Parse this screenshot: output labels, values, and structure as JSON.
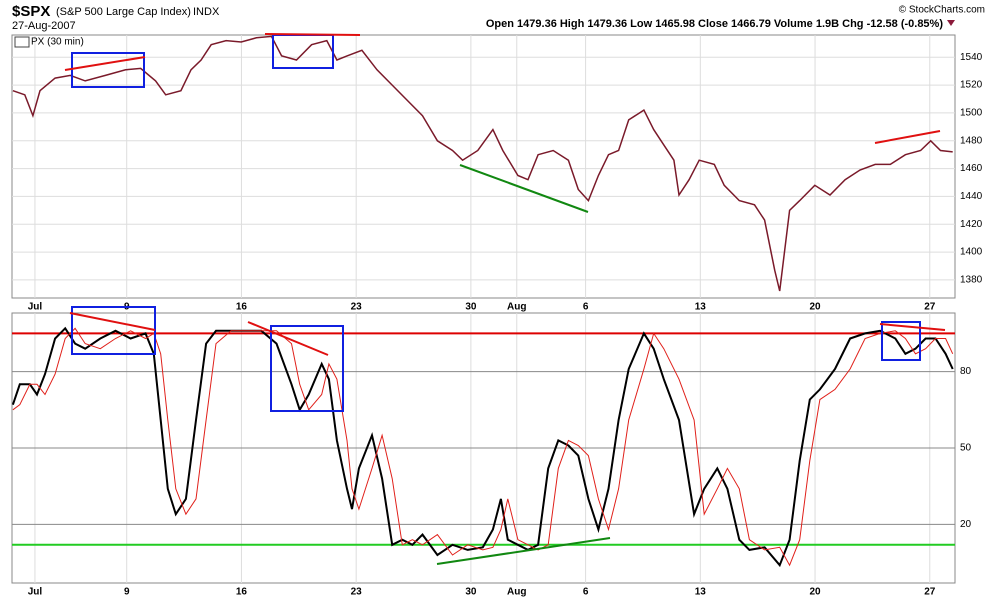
{
  "chart_data": [
    {
      "type": "line",
      "title": "$SPX",
      "subtitle": "(S&P 500 Large Cap Index)",
      "exchange": "INDX",
      "date": "27-Aug-2007",
      "quote": "Open 1479.36  High 1479.36  Low 1465.98  Close 1466.79  Volume 1.9B  Chg -12.58 (-0.85%)",
      "credit": "© StockCharts.com",
      "x": [
        -0.96,
        -0.44,
        -0.09,
        0.22,
        0.88,
        1.54,
        2.19,
        3.07,
        3.95,
        4.61,
        5.26,
        5.7,
        6.36,
        6.8,
        7.24,
        7.68,
        8.33,
        8.99,
        9.65,
        10.31,
        10.75,
        11.4,
        12.06,
        12.72,
        13.16,
        13.6,
        14.25,
        14.91,
        15.57,
        16.23,
        16.89,
        17.54,
        18.2,
        18.64,
        19.3,
        19.96,
        20.39,
        21.05,
        21.49,
        21.93,
        22.59,
        23.25,
        23.68,
        24.12,
        24.56,
        25.0,
        25.44,
        25.88,
        26.54,
        26.97,
        27.41,
        27.85,
        28.07,
        28.51,
        28.95,
        29.61,
        30.04,
        30.7,
        31.36,
        31.8,
        32.24,
        32.46,
        32.89,
        33.33,
        33.99,
        34.65,
        35.31,
        35.96,
        36.62,
        37.28,
        37.94,
        38.6,
        39.04,
        39.47,
        40.0
      ],
      "series": [
        {
          "name": "PX (30 min)",
          "color": "#7a1a2a",
          "values": [
            1516,
            1513,
            1498,
            1516,
            1525,
            1527,
            1523,
            1527,
            1531,
            1532,
            1523,
            1513,
            1516,
            1531,
            1538,
            1549,
            1552,
            1551,
            1554,
            1555,
            1541,
            1538,
            1549,
            1552,
            1538,
            1541,
            1545,
            1531,
            1520,
            1509,
            1498,
            1480,
            1473,
            1466,
            1473,
            1488,
            1473,
            1455,
            1452,
            1470,
            1473,
            1466,
            1445,
            1437,
            1455,
            1470,
            1473,
            1495,
            1502,
            1488,
            1477,
            1466,
            1441,
            1452,
            1466,
            1463,
            1448,
            1437,
            1434,
            1423,
            1387,
            1372,
            1430,
            1437,
            1448,
            1441,
            1452,
            1459,
            1463,
            1463,
            1470,
            1473,
            1480,
            1473,
            1472
          ]
        }
      ],
      "xlim": [
        -1,
        40.1
      ],
      "xticks": [
        {
          "value": 0,
          "label": "Jul"
        },
        {
          "value": 4,
          "label": "9"
        },
        {
          "value": 9,
          "label": "16"
        },
        {
          "value": 14,
          "label": "23"
        },
        {
          "value": 19,
          "label": "30"
        },
        {
          "value": 21,
          "label": "Aug"
        },
        {
          "value": 24,
          "label": "6"
        },
        {
          "value": 29,
          "label": "13"
        },
        {
          "value": 34,
          "label": "20"
        },
        {
          "value": 39,
          "label": "27"
        }
      ],
      "ylim": [
        1367,
        1556
      ],
      "yticks": [
        1380,
        1400,
        1420,
        1440,
        1460,
        1480,
        1500,
        1520,
        1540
      ],
      "grid": true
    },
    {
      "type": "line",
      "x": [
        -0.96,
        -0.66,
        -0.22,
        0.09,
        0.44,
        0.88,
        1.32,
        1.75,
        2.19,
        2.85,
        3.51,
        4.17,
        4.82,
        5.18,
        5.48,
        5.79,
        6.14,
        6.58,
        7.02,
        7.46,
        7.89,
        8.55,
        9.21,
        9.87,
        10.53,
        11.18,
        11.54,
        11.93,
        12.5,
        12.81,
        13.16,
        13.6,
        13.82,
        14.12,
        14.69,
        15.13,
        15.57,
        16.01,
        16.45,
        16.89,
        17.54,
        18.2,
        18.86,
        19.52,
        19.96,
        20.31,
        20.61,
        21.05,
        21.49,
        21.93,
        22.37,
        22.81,
        23.25,
        23.68,
        24.12,
        24.56,
        25.0,
        25.44,
        25.88,
        26.54,
        26.97,
        27.41,
        28.07,
        28.73,
        29.17,
        29.74,
        30.18,
        30.7,
        31.14,
        31.8,
        32.46,
        32.89,
        33.33,
        33.77,
        34.21,
        34.87,
        35.53,
        36.18,
        36.84,
        37.5,
        37.94,
        38.38,
        38.82,
        39.25,
        39.69,
        40.0
      ],
      "series": [
        {
          "color": "#000000",
          "values": [
            67,
            75,
            75,
            71,
            79,
            93,
            97,
            91,
            89,
            93,
            96,
            93,
            95,
            87,
            61,
            34,
            24,
            30,
            61,
            91,
            96,
            96,
            96,
            96,
            91,
            75,
            65,
            71,
            83,
            77,
            53,
            34,
            26,
            42,
            55,
            38,
            12,
            14,
            12,
            16,
            8,
            12,
            10,
            11,
            18,
            30,
            14,
            12,
            10,
            12,
            42,
            53,
            51,
            47,
            30,
            18,
            34,
            61,
            81,
            95,
            89,
            77,
            61,
            24,
            34,
            42,
            34,
            14,
            10,
            11,
            4,
            14,
            45,
            69,
            73,
            81,
            93,
            95,
            96,
            93,
            87,
            89,
            93,
            93,
            87,
            81
          ]
        },
        {
          "color": "#e0201a",
          "values": [
            65,
            67,
            75,
            75,
            71,
            79,
            93,
            97,
            91,
            89,
            93,
            96,
            93,
            95,
            87,
            61,
            34,
            24,
            30,
            61,
            91,
            96,
            96,
            96,
            96,
            91,
            75,
            65,
            71,
            83,
            77,
            53,
            34,
            26,
            42,
            55,
            38,
            12,
            14,
            12,
            16,
            8,
            12,
            10,
            11,
            18,
            30,
            14,
            12,
            10,
            12,
            42,
            53,
            51,
            47,
            30,
            18,
            34,
            61,
            81,
            95,
            89,
            77,
            61,
            24,
            34,
            42,
            34,
            14,
            10,
            11,
            4,
            14,
            45,
            69,
            73,
            81,
            93,
            95,
            96,
            93,
            87,
            89,
            93,
            93,
            87
          ]
        }
      ],
      "hlines": [
        {
          "value": 95,
          "color": "#dd0000"
        },
        {
          "value": 12,
          "color": "#22cc22"
        }
      ],
      "xlim": [
        -1,
        40.1
      ],
      "xticks": [
        {
          "value": 0,
          "label": "Jul"
        },
        {
          "value": 4,
          "label": "9"
        },
        {
          "value": 9,
          "label": "16"
        },
        {
          "value": 14,
          "label": "23"
        },
        {
          "value": 19,
          "label": "30"
        },
        {
          "value": 21,
          "label": "Aug"
        },
        {
          "value": 24,
          "label": "6"
        },
        {
          "value": 29,
          "label": "13"
        },
        {
          "value": 34,
          "label": "20"
        },
        {
          "value": 39,
          "label": "27"
        }
      ],
      "ylim": [
        -3,
        103
      ],
      "yticks": [
        20,
        50,
        80
      ],
      "grid": true
    }
  ]
}
